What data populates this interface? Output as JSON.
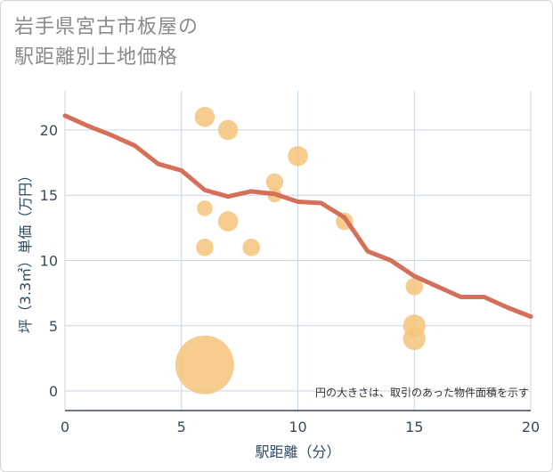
{
  "title": {
    "line1": "岩手県宮古市板屋の",
    "line2": "駅距離別土地価格"
  },
  "colors": {
    "line": "#d4705a",
    "bubble": "#f5c47a",
    "grid": "#c8d6e2",
    "axis": "#3b4a5a"
  },
  "chart_data": {
    "type": "scatter",
    "title": "岩手県宮古市板屋の駅距離別土地価格",
    "xlabel": "駅距離（分）",
    "ylabel": "坪（3.3㎡）単価（万円）",
    "xlim": [
      0,
      20
    ],
    "ylim": [
      -1.5,
      23
    ],
    "xticks": [
      0,
      5,
      10,
      15,
      20
    ],
    "yticks": [
      0,
      5,
      10,
      15,
      20
    ],
    "note": "円の大きさは、取引のあった物件面積を示す",
    "bubbles": [
      {
        "x": 6,
        "y": 21,
        "size": 2
      },
      {
        "x": 7,
        "y": 20,
        "size": 2
      },
      {
        "x": 10,
        "y": 18,
        "size": 2
      },
      {
        "x": 9,
        "y": 16,
        "size": 1.5
      },
      {
        "x": 9,
        "y": 15,
        "size": 1
      },
      {
        "x": 6,
        "y": 14,
        "size": 1.2
      },
      {
        "x": 7,
        "y": 13,
        "size": 2
      },
      {
        "x": 12,
        "y": 13,
        "size": 1.5
      },
      {
        "x": 6,
        "y": 11,
        "size": 1.5
      },
      {
        "x": 8,
        "y": 11,
        "size": 1.5
      },
      {
        "x": 15,
        "y": 8,
        "size": 1.5
      },
      {
        "x": 15,
        "y": 5,
        "size": 2.5
      },
      {
        "x": 15,
        "y": 4,
        "size": 2.5
      },
      {
        "x": 6,
        "y": 2,
        "size": 17
      }
    ],
    "trend": {
      "x": [
        0,
        1,
        2,
        3,
        4,
        5,
        6,
        7,
        8,
        9,
        10,
        11,
        12,
        13,
        14,
        15,
        16,
        17,
        18,
        19,
        20
      ],
      "y": [
        21.1,
        20.3,
        19.6,
        18.8,
        17.4,
        16.9,
        15.4,
        14.9,
        15.3,
        15.1,
        14.5,
        14.4,
        13.3,
        10.7,
        10.0,
        8.8,
        8.0,
        7.2,
        7.2,
        6.4,
        5.7
      ]
    }
  }
}
